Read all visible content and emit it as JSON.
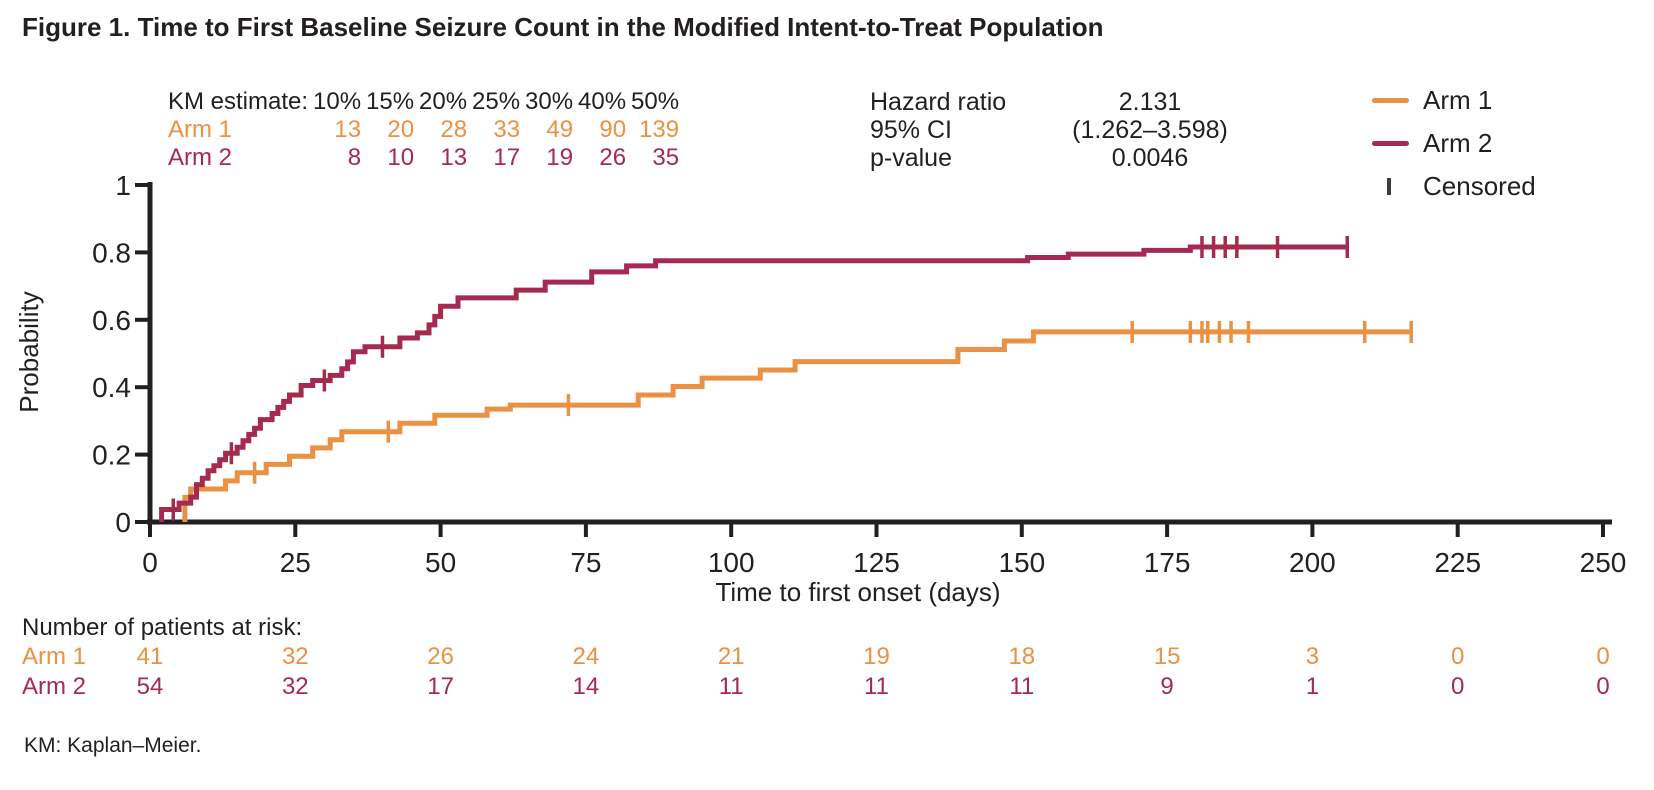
{
  "title": "Figure 1. Time to First Baseline Seizure Count in the Modified Intent-to-Treat Population",
  "colors": {
    "arm1": "#EA9143",
    "arm2": "#A52A4F",
    "text": "#231F20",
    "censor_legend": "#3C3C3C"
  },
  "km_table": {
    "header_label": "KM estimate:",
    "percent_headers": [
      "10%",
      "15%",
      "20%",
      "25%",
      "30%",
      "40%",
      "50%"
    ],
    "rows": [
      {
        "label": "Arm 1",
        "color_key": "arm1",
        "values": [
          "13",
          "20",
          "28",
          "33",
          "49",
          "90",
          "139"
        ]
      },
      {
        "label": "Arm 2",
        "color_key": "arm2",
        "values": [
          "8",
          "10",
          "13",
          "17",
          "19",
          "26",
          "35"
        ]
      }
    ]
  },
  "stats": {
    "rows": [
      {
        "label": "Hazard ratio",
        "value": "2.131"
      },
      {
        "label": "95% CI",
        "value": "(1.262–3.598)"
      },
      {
        "label": "p-value",
        "value": "0.0046"
      }
    ]
  },
  "legend": {
    "items": [
      {
        "label": "Arm 1",
        "type": "line",
        "color_key": "arm1"
      },
      {
        "label": "Arm 2",
        "type": "line",
        "color_key": "arm2"
      },
      {
        "label": "Censored",
        "type": "tick",
        "color_key": "censor_legend"
      }
    ]
  },
  "chart_data": {
    "type": "line",
    "subtype": "kaplan-meier-step",
    "title": "",
    "xlabel": "Time to first onset (days)",
    "ylabel": "Probability",
    "xlim": [
      0,
      250
    ],
    "ylim": [
      0,
      1
    ],
    "grid": false,
    "legend_position": "top-right",
    "x_ticks": [
      0,
      25,
      50,
      75,
      100,
      125,
      150,
      175,
      200,
      225,
      250
    ],
    "y_ticks": [
      {
        "label": "0",
        "value": 0
      },
      {
        "label": "0.2",
        "value": 0.2
      },
      {
        "label": "0.4",
        "value": 0.4
      },
      {
        "label": "0.6",
        "value": 0.6
      },
      {
        "label": "0.8",
        "value": 0.8
      },
      {
        "label": "1",
        "value": 1
      }
    ],
    "series": [
      {
        "name": "Arm 1",
        "color_key": "arm1",
        "end_day": 217,
        "steps": [
          [
            0,
            0
          ],
          [
            6,
            0.073
          ],
          [
            7,
            0.098
          ],
          [
            13,
            0.122
          ],
          [
            15,
            0.146
          ],
          [
            20,
            0.171
          ],
          [
            24,
            0.195
          ],
          [
            28,
            0.22
          ],
          [
            31,
            0.244
          ],
          [
            33,
            0.268
          ],
          [
            43,
            0.293
          ],
          [
            49,
            0.317
          ],
          [
            58,
            0.335
          ],
          [
            62,
            0.347
          ],
          [
            84,
            0.377
          ],
          [
            90,
            0.402
          ],
          [
            95,
            0.427
          ],
          [
            105,
            0.451
          ],
          [
            111,
            0.476
          ],
          [
            139,
            0.512
          ],
          [
            147,
            0.537
          ],
          [
            152,
            0.564
          ]
        ],
        "censored": [
          [
            18,
            0.146
          ],
          [
            41,
            0.268
          ],
          [
            72,
            0.347
          ],
          [
            169,
            0.564
          ],
          [
            179,
            0.564
          ],
          [
            181,
            0.564
          ],
          [
            182,
            0.564
          ],
          [
            184,
            0.564
          ],
          [
            186,
            0.564
          ],
          [
            189,
            0.564
          ],
          [
            209,
            0.564
          ],
          [
            217,
            0.564
          ]
        ]
      },
      {
        "name": "Arm 2",
        "color_key": "arm2",
        "end_day": 206,
        "steps": [
          [
            0,
            0
          ],
          [
            2,
            0.037
          ],
          [
            5,
            0.056
          ],
          [
            7,
            0.074
          ],
          [
            8,
            0.111
          ],
          [
            9,
            0.13
          ],
          [
            10,
            0.152
          ],
          [
            11,
            0.167
          ],
          [
            12,
            0.185
          ],
          [
            13,
            0.204
          ],
          [
            15,
            0.222
          ],
          [
            16,
            0.241
          ],
          [
            17,
            0.26
          ],
          [
            18,
            0.278
          ],
          [
            19,
            0.304
          ],
          [
            21,
            0.322
          ],
          [
            22,
            0.34
          ],
          [
            23,
            0.358
          ],
          [
            24,
            0.377
          ],
          [
            26,
            0.405
          ],
          [
            28,
            0.42
          ],
          [
            31,
            0.435
          ],
          [
            33,
            0.455
          ],
          [
            34,
            0.475
          ],
          [
            35,
            0.505
          ],
          [
            37,
            0.52
          ],
          [
            43,
            0.546
          ],
          [
            46,
            0.561
          ],
          [
            48,
            0.585
          ],
          [
            49,
            0.61
          ],
          [
            50,
            0.64
          ],
          [
            53,
            0.665
          ],
          [
            63,
            0.688
          ],
          [
            68,
            0.712
          ],
          [
            76,
            0.742
          ],
          [
            82,
            0.76
          ],
          [
            87,
            0.775
          ],
          [
            151,
            0.785
          ],
          [
            158,
            0.795
          ],
          [
            171,
            0.806
          ],
          [
            179,
            0.816
          ]
        ],
        "censored": [
          [
            4,
            0.037
          ],
          [
            14,
            0.204
          ],
          [
            30,
            0.42
          ],
          [
            40,
            0.52
          ],
          [
            181,
            0.816
          ],
          [
            183,
            0.816
          ],
          [
            185,
            0.816
          ],
          [
            187,
            0.816
          ],
          [
            194,
            0.816
          ],
          [
            206,
            0.816
          ]
        ]
      }
    ]
  },
  "at_risk": {
    "header": "Number of patients at risk:",
    "days": [
      0,
      25,
      50,
      75,
      100,
      125,
      150,
      175,
      200,
      225,
      250
    ],
    "rows": [
      {
        "label": "Arm 1",
        "color_key": "arm1",
        "counts": [
          "41",
          "32",
          "26",
          "24",
          "21",
          "19",
          "18",
          "15",
          "3",
          "0",
          "0"
        ]
      },
      {
        "label": "Arm 2",
        "color_key": "arm2",
        "counts": [
          "54",
          "32",
          "17",
          "14",
          "11",
          "11",
          "11",
          "9",
          "1",
          "0",
          "0"
        ]
      }
    ]
  },
  "footnote": "KM: Kaplan–Meier."
}
